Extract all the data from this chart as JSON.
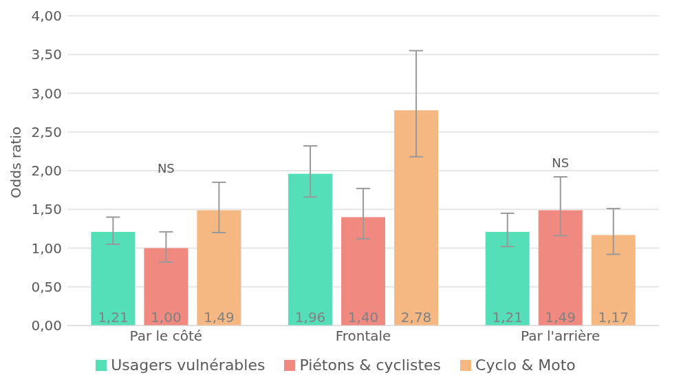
{
  "chart_data": {
    "type": "bar",
    "ylabel": "Odds ratio",
    "categories": [
      "Par le côté",
      "Frontale",
      "Par l'arrière"
    ],
    "series": [
      {
        "name": "Usagers vulnérables",
        "color": "#55dfb9",
        "values": [
          1.21,
          1.96,
          1.21
        ],
        "errors": [
          [
            1.05,
            1.4
          ],
          [
            1.66,
            2.32
          ],
          [
            1.02,
            1.45
          ]
        ],
        "value_labels": [
          "1,21",
          "1,96",
          "1,21"
        ]
      },
      {
        "name": "Piétons & cyclistes",
        "color": "#f08a80",
        "values": [
          1.0,
          1.4,
          1.49
        ],
        "errors": [
          [
            0.82,
            1.21
          ],
          [
            1.12,
            1.77
          ],
          [
            1.16,
            1.92
          ]
        ],
        "value_labels": [
          "1,00",
          "1,40",
          "1,49"
        ]
      },
      {
        "name": "Cyclo & Moto",
        "color": "#f5b883",
        "values": [
          1.49,
          2.78,
          1.17
        ],
        "errors": [
          [
            1.2,
            1.85
          ],
          [
            2.18,
            3.55
          ],
          [
            0.92,
            1.51
          ]
        ],
        "value_labels": [
          "1,49",
          "2,78",
          "1,17"
        ]
      }
    ],
    "ylim": [
      0,
      4
    ],
    "yticks": [
      {
        "value": 0,
        "label": "0,00"
      },
      {
        "value": 0.5,
        "label": "0,50"
      },
      {
        "value": 1,
        "label": "1,00"
      },
      {
        "value": 1.5,
        "label": "1,50"
      },
      {
        "value": 2,
        "label": "2,00"
      },
      {
        "value": 2.5,
        "label": "2,50"
      },
      {
        "value": 3,
        "label": "3,00"
      },
      {
        "value": 3.5,
        "label": "3,50"
      },
      {
        "value": 4,
        "label": "4,00"
      }
    ],
    "annotations": [
      "NS",
      "NS"
    ],
    "grid": "y",
    "legend": "bottom"
  }
}
